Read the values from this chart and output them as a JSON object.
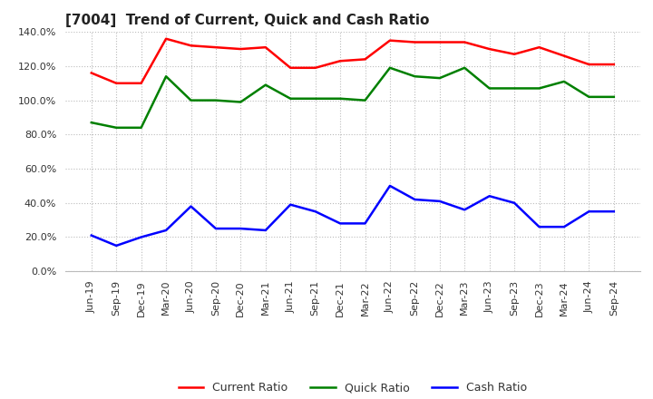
{
  "title": "[7004]  Trend of Current, Quick and Cash Ratio",
  "labels": [
    "Jun-19",
    "Sep-19",
    "Dec-19",
    "Mar-20",
    "Jun-20",
    "Sep-20",
    "Dec-20",
    "Mar-21",
    "Jun-21",
    "Sep-21",
    "Dec-21",
    "Mar-22",
    "Jun-22",
    "Sep-22",
    "Dec-22",
    "Mar-23",
    "Jun-23",
    "Sep-23",
    "Dec-23",
    "Mar-24",
    "Jun-24",
    "Sep-24"
  ],
  "current_ratio": [
    116,
    110,
    110,
    136,
    132,
    131,
    130,
    131,
    119,
    119,
    123,
    124,
    135,
    134,
    134,
    134,
    130,
    127,
    131,
    126,
    121,
    121
  ],
  "quick_ratio": [
    87,
    84,
    84,
    114,
    100,
    100,
    99,
    109,
    101,
    101,
    101,
    100,
    119,
    114,
    113,
    119,
    107,
    107,
    107,
    111,
    102,
    102
  ],
  "cash_ratio": [
    21,
    15,
    20,
    24,
    38,
    25,
    25,
    24,
    39,
    35,
    28,
    28,
    50,
    42,
    41,
    36,
    44,
    40,
    26,
    26,
    35,
    35
  ],
  "current_color": "#FF0000",
  "quick_color": "#008000",
  "cash_color": "#0000FF",
  "ylim": [
    0,
    140
  ],
  "yticks": [
    0,
    20,
    40,
    60,
    80,
    100,
    120,
    140
  ],
  "background_color": "#FFFFFF",
  "grid_color": "#BBBBBB",
  "title_fontsize": 11,
  "tick_fontsize": 8,
  "legend_fontsize": 9,
  "linewidth": 1.8
}
